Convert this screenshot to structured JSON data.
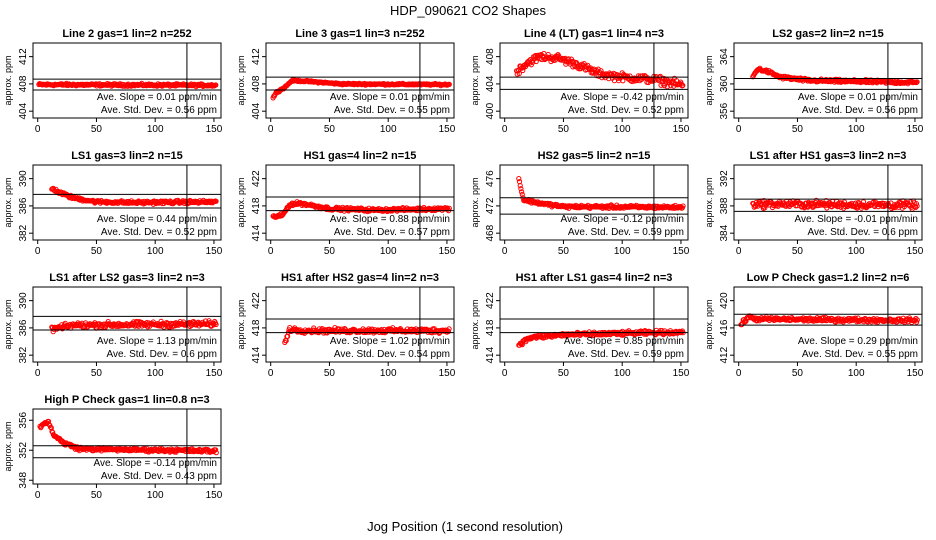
{
  "figure": {
    "title": "HDP_090621  CO2 Shapes",
    "xlabel": "Jog Position (1 second resolution)",
    "marker_color": "#ff0000"
  },
  "chart_data": [
    {
      "type": "scatter",
      "title": "Line 2 gas=1 lin=2 n=252",
      "xlabel": "",
      "ylabel": "approx. ppm",
      "xlim": [
        -4,
        156
      ],
      "ylim": [
        403,
        414
      ],
      "xticks": [
        0,
        50,
        100,
        150
      ],
      "yticks": [
        404,
        408,
        412
      ],
      "hlines": [
        408.7,
        407.1
      ],
      "vline": 127,
      "slope": "Ave. Slope =  0.01  ppm/min",
      "stddev": "Ave. Std. Dev. =  0.56  ppm",
      "series": [
        {
          "x_start": 1,
          "x_end": 152,
          "levels": [
            [
              1,
              407.9
            ],
            [
              152,
              407.8
            ]
          ],
          "noise": 0.15
        }
      ]
    },
    {
      "type": "scatter",
      "title": "Line 3 gas=1 lin=3 n=252",
      "xlabel": "",
      "ylabel": "approx. ppm",
      "xlim": [
        -4,
        156
      ],
      "ylim": [
        403,
        414
      ],
      "xticks": [
        0,
        50,
        100,
        150
      ],
      "yticks": [
        404,
        408,
        412
      ],
      "hlines": [
        409,
        407.1
      ],
      "vline": 127,
      "slope": "Ave. Slope =  0.01  ppm/min",
      "stddev": "Ave. Std. Dev. =  0.55  ppm",
      "series": [
        {
          "x_start": 2,
          "x_end": 152,
          "levels": [
            [
              2,
              406
            ],
            [
              5,
              406.8
            ],
            [
              12,
              407.5
            ],
            [
              18,
              408.5
            ],
            [
              30,
              408.4
            ],
            [
              60,
              408
            ],
            [
              152,
              407.9
            ]
          ],
          "noise": 0.1
        }
      ]
    },
    {
      "type": "scatter",
      "title": "Line 4 (LT) gas=1 lin=4 n=3",
      "xlabel": "",
      "ylabel": "approx. ppm",
      "xlim": [
        -4,
        156
      ],
      "ylim": [
        399,
        410
      ],
      "xticks": [
        0,
        50,
        100,
        150
      ],
      "yticks": [
        400,
        404,
        408
      ],
      "hlines": [
        405,
        403.2
      ],
      "vline": 127,
      "slope": "Ave. Slope = -0.42  ppm/min",
      "stddev": "Ave. Std. Dev. =  0.52  ppm",
      "series": [
        {
          "x_start": 10,
          "x_end": 152,
          "levels": [
            [
              10,
              405.8
            ],
            [
              20,
              407.2
            ],
            [
              30,
              408
            ],
            [
              45,
              407.8
            ],
            [
              60,
              407
            ],
            [
              80,
              405.5
            ],
            [
              100,
              405
            ],
            [
              130,
              404.6
            ],
            [
              152,
              403.8
            ]
          ],
          "noise": 0.5
        }
      ]
    },
    {
      "type": "scatter",
      "title": "LS2 gas=2 lin=2 n=15",
      "xlabel": "",
      "ylabel": "approx. ppm",
      "xlim": [
        -4,
        156
      ],
      "ylim": [
        355,
        366
      ],
      "xticks": [
        0,
        50,
        100,
        150
      ],
      "yticks": [
        356,
        360,
        364
      ],
      "hlines": [
        360.8,
        359.2
      ],
      "vline": 127,
      "slope": "Ave. Slope =  0.01  ppm/min",
      "stddev": "Ave. Std. Dev. =  0.56  ppm",
      "series": [
        {
          "x_start": 12,
          "x_end": 152,
          "levels": [
            [
              12,
              361
            ],
            [
              16,
              362.2
            ],
            [
              25,
              361.8
            ],
            [
              35,
              361
            ],
            [
              60,
              360.5
            ],
            [
              152,
              360.2
            ]
          ],
          "noise": 0.2
        }
      ]
    },
    {
      "type": "scatter",
      "title": "LS1 gas=3 lin=2 n=15",
      "xlabel": "",
      "ylabel": "approx. ppm",
      "xlim": [
        -4,
        156
      ],
      "ylim": [
        381,
        392
      ],
      "xticks": [
        0,
        50,
        100,
        150
      ],
      "yticks": [
        382,
        386,
        390
      ],
      "hlines": [
        387.7,
        385.7
      ],
      "vline": 127,
      "slope": "Ave. Slope =  0.44  ppm/min",
      "stddev": "Ave. Std. Dev. =  0.52  ppm",
      "series": [
        {
          "x_start": 12,
          "x_end": 152,
          "levels": [
            [
              12,
              388.6
            ],
            [
              18,
              388
            ],
            [
              30,
              387.2
            ],
            [
              50,
              386.6
            ],
            [
              80,
              386.5
            ],
            [
              152,
              386.6
            ]
          ],
          "noise": 0.2
        }
      ]
    },
    {
      "type": "scatter",
      "title": "HS1 gas=4 lin=2 n=15",
      "xlabel": "",
      "ylabel": "approx. ppm",
      "xlim": [
        -4,
        156
      ],
      "ylim": [
        413,
        424
      ],
      "xticks": [
        0,
        50,
        100,
        150
      ],
      "yticks": [
        414,
        418,
        422
      ],
      "hlines": [
        419.3,
        417.3
      ],
      "vline": 127,
      "slope": "Ave. Slope =  0.88  ppm/min",
      "stddev": "Ave. Std. Dev. =  0.57  ppm",
      "series": [
        {
          "x_start": 2,
          "x_end": 152,
          "levels": [
            [
              2,
              416.4
            ],
            [
              10,
              416.6
            ],
            [
              16,
              418.2
            ],
            [
              25,
              418.4
            ],
            [
              50,
              417.6
            ],
            [
              90,
              417.4
            ],
            [
              152,
              417.6
            ]
          ],
          "noise": 0.2
        }
      ]
    },
    {
      "type": "scatter",
      "title": "HS2 gas=5 lin=2 n=15",
      "xlabel": "",
      "ylabel": "approx. ppm",
      "xlim": [
        -4,
        156
      ],
      "ylim": [
        467,
        478
      ],
      "xticks": [
        0,
        50,
        100,
        150
      ],
      "yticks": [
        468,
        472,
        476
      ],
      "hlines": [
        473.2,
        470.8
      ],
      "vline": 127,
      "slope": "Ave. Slope = -0.12  ppm/min",
      "stddev": "Ave. Std. Dev. =  0.59  ppm",
      "series": [
        {
          "x_start": 12,
          "x_end": 152,
          "levels": [
            [
              12,
              476
            ],
            [
              16,
              472.9
            ],
            [
              30,
              472.4
            ],
            [
              50,
              471.9
            ],
            [
              152,
              471.8
            ]
          ],
          "noise": 0.2
        }
      ]
    },
    {
      "type": "scatter",
      "title": "LS1 after HS1 gas=3 lin=2 n=3",
      "xlabel": "",
      "ylabel": "approx. ppm",
      "xlim": [
        -4,
        156
      ],
      "ylim": [
        383,
        394
      ],
      "xticks": [
        0,
        50,
        100,
        150
      ],
      "yticks": [
        384,
        388,
        392
      ],
      "hlines": [
        389,
        387.2
      ],
      "vline": 127,
      "slope": "Ave. Slope = -0.01  ppm/min",
      "stddev": "Ave. Std. Dev. =  0.6  ppm",
      "series": [
        {
          "x_start": 12,
          "x_end": 152,
          "levels": [
            [
              12,
              388.3
            ],
            [
              152,
              388.1
            ]
          ],
          "noise": 0.45
        }
      ]
    },
    {
      "type": "scatter",
      "title": "LS1 after LS2 gas=3 lin=2 n=3",
      "xlabel": "",
      "ylabel": "approx. ppm",
      "xlim": [
        -4,
        156
      ],
      "ylim": [
        381,
        392
      ],
      "xticks": [
        0,
        50,
        100,
        150
      ],
      "yticks": [
        382,
        386,
        390
      ],
      "hlines": [
        387.7,
        385.7
      ],
      "vline": 127,
      "slope": "Ave. Slope =  1.13  ppm/min",
      "stddev": "Ave. Std. Dev. =  0.6  ppm",
      "series": [
        {
          "x_start": 12,
          "x_end": 152,
          "levels": [
            [
              12,
              385.8
            ],
            [
              30,
              386.4
            ],
            [
              152,
              386.6
            ]
          ],
          "noise": 0.35
        }
      ]
    },
    {
      "type": "scatter",
      "title": "HS1 after HS2 gas=4 lin=2 n=3",
      "xlabel": "",
      "ylabel": "approx. ppm",
      "xlim": [
        -4,
        156
      ],
      "ylim": [
        413,
        424
      ],
      "xticks": [
        0,
        50,
        100,
        150
      ],
      "yticks": [
        414,
        418,
        422
      ],
      "hlines": [
        419.3,
        417.3
      ],
      "vline": 127,
      "slope": "Ave. Slope =  1.02  ppm/min",
      "stddev": "Ave. Std. Dev. =  0.54  ppm",
      "series": [
        {
          "x_start": 12,
          "x_end": 152,
          "levels": [
            [
              12,
              415.8
            ],
            [
              16,
              417.8
            ],
            [
              30,
              417.6
            ],
            [
              152,
              417.6
            ]
          ],
          "noise": 0.3
        }
      ]
    },
    {
      "type": "scatter",
      "title": "HS1 after LS1 gas=4 lin=2 n=3",
      "xlabel": "",
      "ylabel": "approx. ppm",
      "xlim": [
        -4,
        156
      ],
      "ylim": [
        413,
        424
      ],
      "xticks": [
        0,
        50,
        100,
        150
      ],
      "yticks": [
        414,
        418,
        422
      ],
      "hlines": [
        419.3,
        417.3
      ],
      "vline": 127,
      "slope": "Ave. Slope =  0.85  ppm/min",
      "stddev": "Ave. Std. Dev. =  0.59  ppm",
      "series": [
        {
          "x_start": 12,
          "x_end": 152,
          "levels": [
            [
              12,
              415.6
            ],
            [
              22,
              416.6
            ],
            [
              50,
              417
            ],
            [
              100,
              417.2
            ],
            [
              152,
              417.4
            ]
          ],
          "noise": 0.25
        }
      ]
    },
    {
      "type": "scatter",
      "title": "Low P Check gas=1.2 lin=2 n=6",
      "xlabel": "",
      "ylabel": "approx. ppm",
      "xlim": [
        -4,
        156
      ],
      "ylim": [
        411,
        422
      ],
      "xticks": [
        0,
        50,
        100,
        150
      ],
      "yticks": [
        412,
        416,
        420
      ],
      "hlines": [
        418,
        416.4
      ],
      "vline": 127,
      "slope": "Ave. Slope =  0.29  ppm/min",
      "stddev": "Ave. Std. Dev. =  0.55  ppm",
      "series": [
        {
          "x_start": 2,
          "x_end": 152,
          "levels": [
            [
              2,
              416.5
            ],
            [
              8,
              417.6
            ],
            [
              15,
              417.3
            ],
            [
              152,
              417.1
            ]
          ],
          "noise": 0.25
        }
      ]
    },
    {
      "type": "scatter",
      "title": "High P Check gas=1 lin=0.8 n=3",
      "xlabel": "",
      "ylabel": "approx. ppm",
      "xlim": [
        -4,
        156
      ],
      "ylim": [
        347.5,
        357.5
      ],
      "xticks": [
        0,
        50,
        100,
        150
      ],
      "yticks": [
        348,
        352,
        356
      ],
      "hlines": [
        352.6,
        351
      ],
      "vline": 127,
      "slope": "Ave. Slope = -0.14  ppm/min",
      "stddev": "Ave. Std. Dev. =  0.43  ppm",
      "series": [
        {
          "x_start": 2,
          "x_end": 152,
          "levels": [
            [
              2,
              355.2
            ],
            [
              9,
              355.8
            ],
            [
              14,
              354
            ],
            [
              22,
              353
            ],
            [
              35,
              352.2
            ],
            [
              152,
              351.9
            ]
          ],
          "noise": 0.2
        }
      ]
    }
  ]
}
